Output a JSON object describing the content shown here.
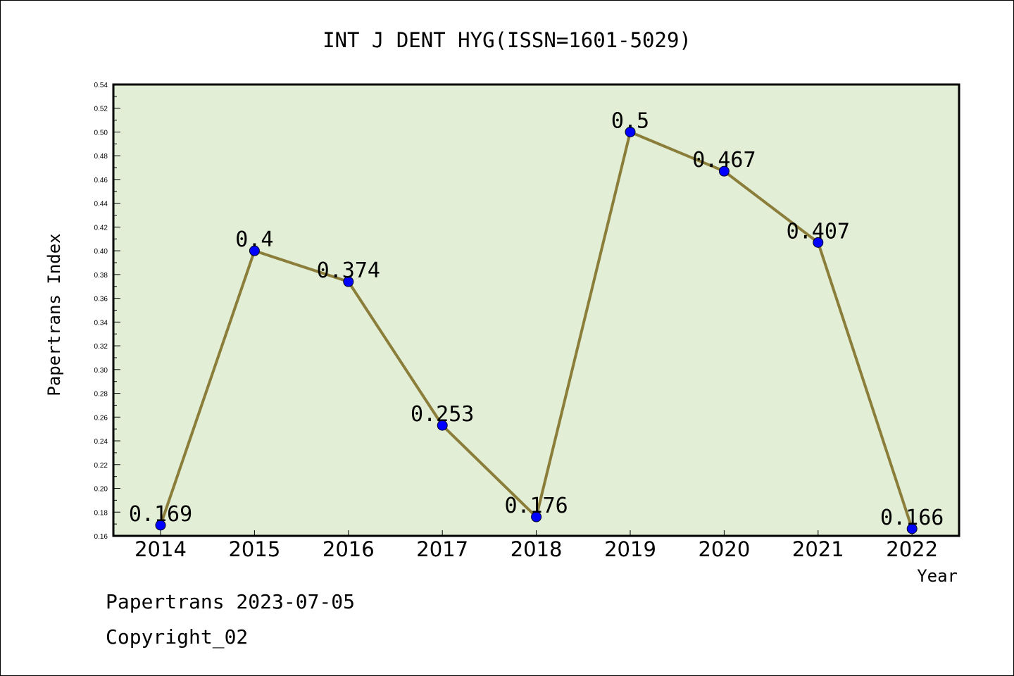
{
  "chart_data": {
    "type": "line",
    "title": "INT J DENT HYG(ISSN=1601-5029)",
    "xlabel": "Year",
    "ylabel": "Papertrans Index",
    "categories": [
      "2014",
      "2015",
      "2016",
      "2017",
      "2018",
      "2019",
      "2020",
      "2021",
      "2022"
    ],
    "series": [
      {
        "values": [
          0.169,
          0.4,
          0.374,
          0.253,
          0.176,
          0.5,
          0.467,
          0.407,
          0.166
        ],
        "labels": [
          "0.169",
          "0.4",
          "0.374",
          "0.253",
          "0.176",
          "0.5",
          "0.467",
          "0.407",
          "0.166"
        ],
        "line_color": "#8b7d3a",
        "marker_color": "#0000ff"
      }
    ],
    "ylim": [
      0.16,
      0.54
    ],
    "yticks": [
      "0.16",
      "0.18",
      "0.20",
      "0.22",
      "0.24",
      "0.26",
      "0.28",
      "0.30",
      "0.32",
      "0.34",
      "0.36",
      "0.38",
      "0.40",
      "0.42",
      "0.44",
      "0.46",
      "0.48",
      "0.50",
      "0.52",
      "0.54"
    ],
    "grid": false,
    "plot_background": "#e2efd6"
  },
  "footer": {
    "line1": "Papertrans 2023-07-05",
    "line2": "Copyright_02"
  }
}
